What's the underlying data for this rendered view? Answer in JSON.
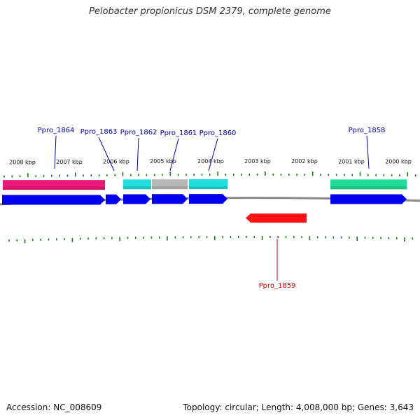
{
  "title": "Pelobacter propionicus DSM 2379, complete genome",
  "footer": {
    "accession": "Accession: NC_008609",
    "topology": "Topology: circular; Length: 4,008,000 bp; Genes: 3,643"
  },
  "colors": {
    "cds": "#0000ee",
    "gene_label_forward": "#0000aa",
    "gene_label_reverse": "#cc0000",
    "tick": "#1a7a1a",
    "backbone": "#888888"
  },
  "scale": {
    "labels": [
      "2008 kbp",
      "2007 kbp",
      "2006 kbp",
      "2005 kbp",
      "2004 kbp",
      "2003 kbp",
      "2002 kbp",
      "2001 kbp",
      "2000 kbp"
    ]
  },
  "labeled_genes": [
    {
      "name": "Ppro_1864",
      "strand": "forward"
    },
    {
      "name": "Ppro_1863",
      "strand": "forward"
    },
    {
      "name": "Ppro_1862",
      "strand": "forward"
    },
    {
      "name": "Ppro_1861",
      "strand": "forward"
    },
    {
      "name": "Ppro_1860",
      "strand": "forward"
    },
    {
      "name": "Ppro_1858",
      "strand": "forward"
    },
    {
      "name": "Ppro_1859",
      "strand": "reverse"
    }
  ],
  "feature_tracks": [
    {
      "color": "#e8197a"
    },
    {
      "color": "#22dddd"
    },
    {
      "color": "#b8b8b8"
    },
    {
      "color": "#22dddd"
    },
    {
      "color": "#22dd99"
    }
  ]
}
